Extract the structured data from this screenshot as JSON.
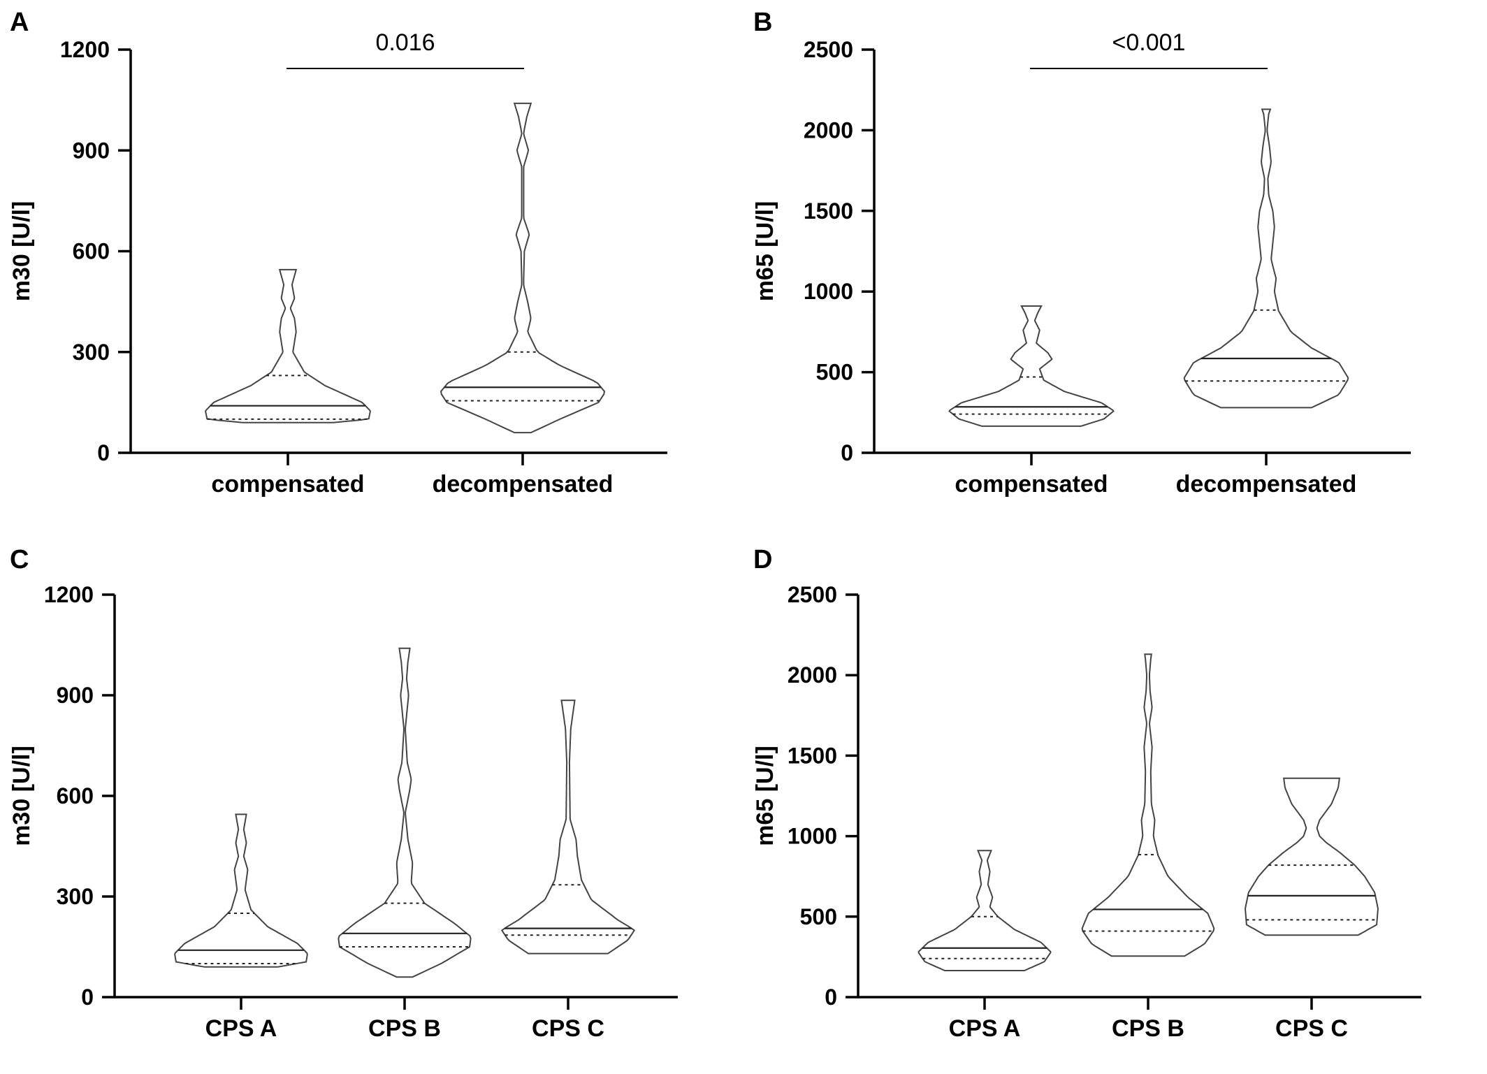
{
  "chart_data": [
    {
      "panel": "A",
      "type": "violin",
      "ylabel": "m30 [U/l]",
      "ylim": [
        0,
        1200
      ],
      "yticks": [
        0,
        300,
        600,
        900,
        1200
      ],
      "categories": [
        "compensated",
        "decompensated"
      ],
      "comparisons": [
        {
          "from": 0,
          "to": 1,
          "label": "0.016"
        }
      ],
      "series": [
        {
          "category": "compensated",
          "min": 90,
          "q1": 100,
          "median": 140,
          "q3": 230,
          "max": 545,
          "profile": [
            [
              90,
              0.55
            ],
            [
              100,
              0.98
            ],
            [
              125,
              1.0
            ],
            [
              150,
              0.9
            ],
            [
              200,
              0.45
            ],
            [
              240,
              0.2
            ],
            [
              300,
              0.06
            ],
            [
              360,
              0.1
            ],
            [
              400,
              0.08
            ],
            [
              430,
              0.03
            ],
            [
              460,
              0.08
            ],
            [
              500,
              0.05
            ],
            [
              545,
              0.1
            ]
          ]
        },
        {
          "category": "decompensated",
          "min": 60,
          "q1": 155,
          "median": 195,
          "q3": 300,
          "max": 1040,
          "profile": [
            [
              60,
              0.1
            ],
            [
              100,
              0.45
            ],
            [
              150,
              0.92
            ],
            [
              180,
              1.0
            ],
            [
              210,
              0.9
            ],
            [
              260,
              0.45
            ],
            [
              300,
              0.18
            ],
            [
              360,
              0.06
            ],
            [
              400,
              0.1
            ],
            [
              450,
              0.06
            ],
            [
              500,
              0.01
            ],
            [
              600,
              0.02
            ],
            [
              650,
              0.08
            ],
            [
              700,
              0.01
            ],
            [
              850,
              0.01
            ],
            [
              900,
              0.07
            ],
            [
              950,
              0.01
            ],
            [
              1000,
              0.05
            ],
            [
              1040,
              0.1
            ]
          ]
        }
      ]
    },
    {
      "panel": "B",
      "type": "violin",
      "ylabel": "m65 [U/l]",
      "ylim": [
        0,
        2500
      ],
      "yticks": [
        0,
        500,
        1000,
        1500,
        2000,
        2500
      ],
      "categories": [
        "compensated",
        "decompensated"
      ],
      "comparisons": [
        {
          "from": 0,
          "to": 1,
          "label": "<0.001"
        }
      ],
      "series": [
        {
          "category": "compensated",
          "min": 165,
          "q1": 240,
          "median": 285,
          "q3": 470,
          "max": 910,
          "profile": [
            [
              165,
              0.6
            ],
            [
              210,
              0.88
            ],
            [
              260,
              1.0
            ],
            [
              310,
              0.85
            ],
            [
              380,
              0.4
            ],
            [
              450,
              0.15
            ],
            [
              520,
              0.1
            ],
            [
              580,
              0.25
            ],
            [
              620,
              0.2
            ],
            [
              680,
              0.06
            ],
            [
              760,
              0.1
            ],
            [
              820,
              0.04
            ],
            [
              870,
              0.08
            ],
            [
              910,
              0.12
            ]
          ]
        },
        {
          "category": "decompensated",
          "min": 280,
          "q1": 445,
          "median": 585,
          "q3": 885,
          "max": 2130,
          "profile": [
            [
              280,
              0.55
            ],
            [
              360,
              0.88
            ],
            [
              460,
              1.0
            ],
            [
              560,
              0.88
            ],
            [
              650,
              0.55
            ],
            [
              750,
              0.3
            ],
            [
              880,
              0.15
            ],
            [
              1000,
              0.1
            ],
            [
              1080,
              0.12
            ],
            [
              1200,
              0.06
            ],
            [
              1400,
              0.1
            ],
            [
              1500,
              0.08
            ],
            [
              1600,
              0.03
            ],
            [
              1700,
              0.02
            ],
            [
              1800,
              0.06
            ],
            [
              1900,
              0.04
            ],
            [
              2000,
              0.01
            ],
            [
              2100,
              0.03
            ],
            [
              2130,
              0.05
            ]
          ]
        }
      ]
    },
    {
      "panel": "C",
      "type": "violin",
      "ylabel": "m30 [U/l]",
      "ylim": [
        0,
        1200
      ],
      "yticks": [
        0,
        300,
        600,
        900,
        1200
      ],
      "categories": [
        "CPS A",
        "CPS B",
        "CPS C"
      ],
      "comparisons": [],
      "series": [
        {
          "category": "CPS A",
          "min": 90,
          "q1": 100,
          "median": 140,
          "q3": 250,
          "max": 545,
          "profile": [
            [
              90,
              0.55
            ],
            [
              105,
              0.98
            ],
            [
              130,
              1.0
            ],
            [
              160,
              0.85
            ],
            [
              210,
              0.4
            ],
            [
              260,
              0.15
            ],
            [
              320,
              0.06
            ],
            [
              380,
              0.1
            ],
            [
              420,
              0.04
            ],
            [
              460,
              0.08
            ],
            [
              500,
              0.04
            ],
            [
              545,
              0.08
            ]
          ]
        },
        {
          "category": "CPS B",
          "min": 60,
          "q1": 150,
          "median": 190,
          "q3": 280,
          "max": 1040,
          "profile": [
            [
              60,
              0.12
            ],
            [
              100,
              0.55
            ],
            [
              150,
              0.98
            ],
            [
              180,
              1.0
            ],
            [
              220,
              0.75
            ],
            [
              280,
              0.3
            ],
            [
              340,
              0.1
            ],
            [
              400,
              0.12
            ],
            [
              470,
              0.05
            ],
            [
              550,
              0.01
            ],
            [
              620,
              0.08
            ],
            [
              650,
              0.1
            ],
            [
              700,
              0.04
            ],
            [
              800,
              0.01
            ],
            [
              900,
              0.06
            ],
            [
              950,
              0.03
            ],
            [
              1000,
              0.05
            ],
            [
              1040,
              0.08
            ]
          ]
        },
        {
          "category": "CPS C",
          "min": 130,
          "q1": 185,
          "median": 205,
          "q3": 335,
          "max": 885,
          "profile": [
            [
              130,
              0.6
            ],
            [
              170,
              0.9
            ],
            [
              200,
              1.0
            ],
            [
              230,
              0.75
            ],
            [
              290,
              0.35
            ],
            [
              350,
              0.2
            ],
            [
              420,
              0.14
            ],
            [
              470,
              0.12
            ],
            [
              530,
              0.03
            ],
            [
              700,
              0.02
            ],
            [
              800,
              0.04
            ],
            [
              885,
              0.1
            ]
          ]
        }
      ]
    },
    {
      "panel": "D",
      "type": "violin",
      "ylabel": "m65 [U/l]",
      "ylim": [
        0,
        2500
      ],
      "yticks": [
        0,
        500,
        1000,
        1500,
        2000,
        2500
      ],
      "categories": [
        "CPS A",
        "CPS B",
        "CPS C"
      ],
      "comparisons": [],
      "series": [
        {
          "category": "CPS A",
          "min": 165,
          "q1": 240,
          "median": 305,
          "q3": 500,
          "max": 910,
          "profile": [
            [
              165,
              0.6
            ],
            [
              220,
              0.9
            ],
            [
              280,
              1.0
            ],
            [
              340,
              0.85
            ],
            [
              420,
              0.45
            ],
            [
              500,
              0.2
            ],
            [
              560,
              0.08
            ],
            [
              620,
              0.12
            ],
            [
              700,
              0.05
            ],
            [
              780,
              0.08
            ],
            [
              850,
              0.04
            ],
            [
              910,
              0.1
            ]
          ]
        },
        {
          "category": "CPS B",
          "min": 255,
          "q1": 410,
          "median": 545,
          "q3": 885,
          "max": 2130,
          "profile": [
            [
              255,
              0.55
            ],
            [
              330,
              0.85
            ],
            [
              420,
              1.0
            ],
            [
              520,
              0.9
            ],
            [
              620,
              0.6
            ],
            [
              750,
              0.3
            ],
            [
              880,
              0.15
            ],
            [
              1000,
              0.08
            ],
            [
              1100,
              0.1
            ],
            [
              1200,
              0.05
            ],
            [
              1400,
              0.04
            ],
            [
              1550,
              0.06
            ],
            [
              1700,
              0.02
            ],
            [
              1800,
              0.06
            ],
            [
              1900,
              0.03
            ],
            [
              2000,
              0.02
            ],
            [
              2100,
              0.04
            ],
            [
              2130,
              0.05
            ]
          ]
        },
        {
          "category": "CPS C",
          "min": 385,
          "q1": 480,
          "median": 630,
          "q3": 820,
          "max": 1360,
          "profile": [
            [
              385,
              0.7
            ],
            [
              450,
              0.98
            ],
            [
              550,
              1.0
            ],
            [
              650,
              0.95
            ],
            [
              750,
              0.8
            ],
            [
              820,
              0.65
            ],
            [
              900,
              0.42
            ],
            [
              960,
              0.22
            ],
            [
              1000,
              0.12
            ],
            [
              1050,
              0.08
            ],
            [
              1100,
              0.12
            ],
            [
              1200,
              0.3
            ],
            [
              1300,
              0.4
            ],
            [
              1360,
              0.42
            ]
          ]
        }
      ]
    }
  ]
}
